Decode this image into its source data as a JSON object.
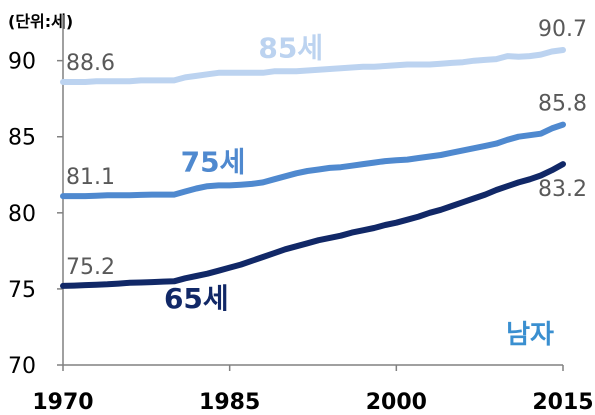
{
  "chart_data": {
    "type": "line",
    "unit_label": "(단위:세)",
    "gender_label": "남자",
    "gender_color": "#3a8fd0",
    "x": [
      1970,
      1971,
      1972,
      1973,
      1974,
      1975,
      1976,
      1977,
      1978,
      1979,
      1980,
      1981,
      1982,
      1983,
      1984,
      1985,
      1986,
      1987,
      1988,
      1989,
      1990,
      1991,
      1992,
      1993,
      1994,
      1995,
      1996,
      1997,
      1998,
      1999,
      2000,
      2001,
      2002,
      2003,
      2004,
      2005,
      2006,
      2007,
      2008,
      2009,
      2010,
      2011,
      2012,
      2013,
      2014,
      2015
    ],
    "xticks": [
      "1970",
      "1985",
      "2000",
      "2015"
    ],
    "yticks": [
      "70",
      "75",
      "80",
      "85",
      "90"
    ],
    "ylim": [
      70,
      93
    ],
    "xlim": [
      1970,
      2015
    ],
    "series": [
      {
        "name": "85세",
        "color": "#bcd3f0",
        "start_label": "88.6",
        "end_label": "90.7",
        "values": [
          88.6,
          88.6,
          88.6,
          88.65,
          88.65,
          88.65,
          88.65,
          88.7,
          88.7,
          88.7,
          88.7,
          88.9,
          89.0,
          89.1,
          89.2,
          89.2,
          89.2,
          89.2,
          89.2,
          89.3,
          89.3,
          89.3,
          89.35,
          89.4,
          89.45,
          89.5,
          89.55,
          89.6,
          89.6,
          89.65,
          89.7,
          89.75,
          89.75,
          89.75,
          89.8,
          89.85,
          89.9,
          90.0,
          90.05,
          90.1,
          90.3,
          90.25,
          90.3,
          90.4,
          90.6,
          90.7
        ]
      },
      {
        "name": "75세",
        "color": "#4f89cf",
        "start_label": "81.1",
        "end_label": "85.8",
        "values": [
          81.1,
          81.1,
          81.1,
          81.12,
          81.15,
          81.15,
          81.15,
          81.18,
          81.2,
          81.2,
          81.2,
          81.4,
          81.6,
          81.75,
          81.8,
          81.8,
          81.85,
          81.9,
          82.0,
          82.2,
          82.4,
          82.6,
          82.75,
          82.85,
          82.95,
          83.0,
          83.1,
          83.2,
          83.3,
          83.4,
          83.45,
          83.5,
          83.6,
          83.7,
          83.8,
          83.95,
          84.1,
          84.25,
          84.4,
          84.55,
          84.8,
          85.0,
          85.1,
          85.2,
          85.55,
          85.8
        ]
      },
      {
        "name": "65세",
        "color": "#112867",
        "start_label": "75.2",
        "end_label": "83.2",
        "values": [
          75.2,
          75.22,
          75.25,
          75.28,
          75.3,
          75.35,
          75.4,
          75.42,
          75.45,
          75.48,
          75.5,
          75.7,
          75.85,
          76.0,
          76.2,
          76.4,
          76.6,
          76.85,
          77.1,
          77.35,
          77.6,
          77.8,
          78.0,
          78.2,
          78.35,
          78.5,
          78.7,
          78.85,
          79.0,
          79.2,
          79.35,
          79.55,
          79.75,
          80.0,
          80.2,
          80.45,
          80.7,
          80.95,
          81.2,
          81.5,
          81.75,
          82.0,
          82.2,
          82.45,
          82.8,
          83.2
        ]
      }
    ]
  }
}
